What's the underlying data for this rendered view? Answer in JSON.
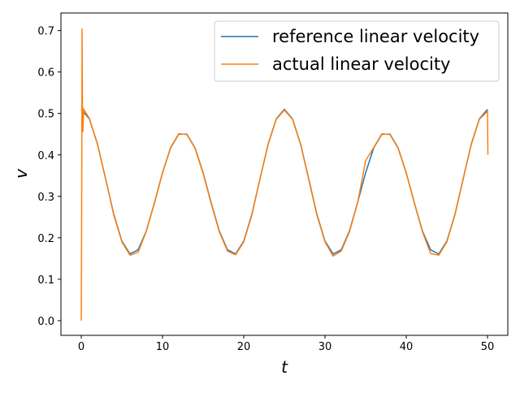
{
  "chart_data": {
    "type": "line",
    "xlabel": "t",
    "ylabel": "v",
    "xlim": [
      -2.5,
      52.5
    ],
    "ylim": [
      -0.0354,
      0.7424
    ],
    "xticks": [
      0,
      10,
      20,
      30,
      40,
      50
    ],
    "yticks": [
      {
        "value": 0,
        "label": "0.0"
      },
      0.1,
      0.2,
      0.3,
      0.4,
      0.5,
      0.6,
      0.7
    ],
    "legend": "upper right",
    "series": [
      {
        "name": "reference linear velocity",
        "color": "#1f77b4",
        "x": [
          0,
          1,
          2,
          3,
          4,
          5,
          6,
          7,
          8,
          9,
          10,
          11,
          12,
          13,
          14,
          15,
          16,
          17,
          18,
          19,
          20,
          21,
          22,
          23,
          24,
          25,
          26,
          27,
          28,
          29,
          30,
          31,
          32,
          33,
          34,
          35,
          36,
          37,
          38,
          39,
          40,
          41,
          42,
          43,
          44,
          45,
          46,
          47,
          48,
          49,
          50
        ],
        "values": [
          0.51,
          0.487,
          0.426,
          0.342,
          0.257,
          0.192,
          0.161,
          0.171,
          0.216,
          0.284,
          0.357,
          0.417,
          0.45,
          0.45,
          0.417,
          0.357,
          0.284,
          0.216,
          0.171,
          0.161,
          0.192,
          0.257,
          0.342,
          0.426,
          0.487,
          0.51,
          0.487,
          0.426,
          0.342,
          0.257,
          0.192,
          0.161,
          0.171,
          0.216,
          0.284,
          0.357,
          0.417,
          0.45,
          0.45,
          0.417,
          0.357,
          0.284,
          0.216,
          0.171,
          0.161,
          0.192,
          0.257,
          0.342,
          0.426,
          0.487,
          0.51
        ]
      },
      {
        "name": "actual linear velocity",
        "color": "#ff7f0e",
        "x": [
          0,
          0.05,
          0.1,
          0.15,
          0.2,
          0.3,
          1,
          2,
          3,
          4,
          5,
          6,
          7,
          8,
          9,
          10,
          11,
          12,
          13,
          14,
          15,
          16,
          17,
          18,
          19,
          20,
          21,
          22,
          23,
          24,
          25,
          26,
          27,
          28,
          29,
          30,
          31,
          32,
          33,
          34,
          35,
          36,
          37,
          38,
          39,
          40,
          41,
          42,
          43,
          44,
          45,
          46,
          47,
          48,
          49,
          50,
          50.05
        ],
        "values": [
          0,
          0.25,
          0.705,
          0.5,
          0.455,
          0.51,
          0.488,
          0.425,
          0.343,
          0.255,
          0.19,
          0.158,
          0.165,
          0.215,
          0.283,
          0.356,
          0.418,
          0.451,
          0.449,
          0.416,
          0.355,
          0.282,
          0.214,
          0.168,
          0.159,
          0.19,
          0.255,
          0.343,
          0.425,
          0.486,
          0.508,
          0.486,
          0.425,
          0.34,
          0.255,
          0.19,
          0.156,
          0.168,
          0.214,
          0.283,
          0.386,
          0.418,
          0.451,
          0.449,
          0.416,
          0.356,
          0.283,
          0.214,
          0.162,
          0.158,
          0.19,
          0.256,
          0.341,
          0.425,
          0.486,
          0.505,
          0.4
        ]
      }
    ]
  }
}
